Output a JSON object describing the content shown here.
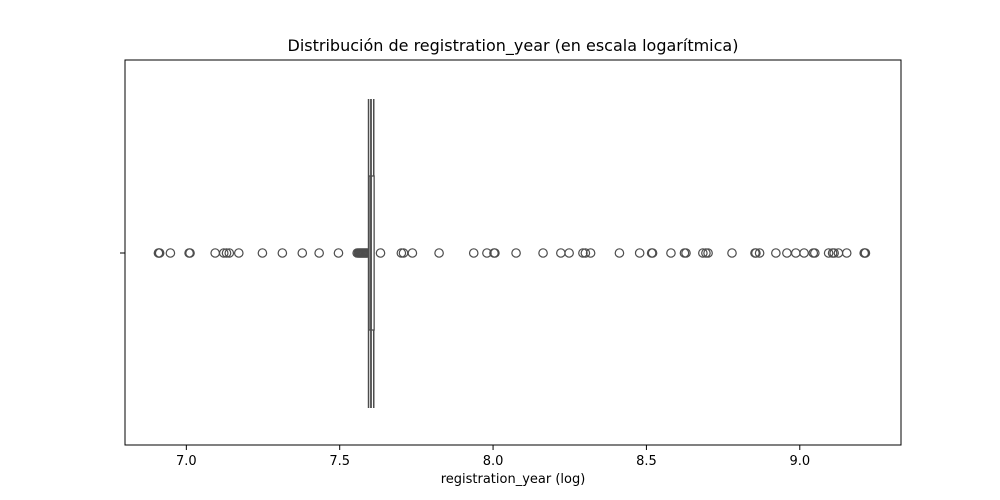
{
  "chart_data": {
    "type": "box",
    "orientation": "horizontal",
    "title": "Distribución de registration_year (en escala logarítmica)",
    "xlabel": "registration_year (log)",
    "ylabel": "",
    "xlim": [
      6.8,
      9.33
    ],
    "x_ticks": [
      7.0,
      7.5,
      8.0,
      8.5,
      9.0
    ],
    "x_tick_labels": [
      "7.0",
      "7.5",
      "8.0",
      "8.5",
      "9.0"
    ],
    "y_tick_labels": [
      ""
    ],
    "grid": false,
    "box": {
      "q1": 7.599,
      "median": 7.602,
      "q3": 7.609,
      "whisker_low": 7.594,
      "whisker_high": 7.611,
      "color": "#4d4d4d"
    },
    "outliers": [
      6.909,
      6.911,
      6.913,
      6.948,
      7.009,
      7.012,
      7.094,
      7.122,
      7.131,
      7.14,
      7.171,
      7.248,
      7.313,
      7.378,
      7.433,
      7.496,
      7.557,
      7.561,
      7.564,
      7.567,
      7.57,
      7.573,
      7.576,
      7.579,
      7.582,
      7.585,
      7.588,
      7.591,
      7.633,
      7.701,
      7.708,
      7.737,
      7.824,
      7.937,
      7.98,
      8.003,
      8.006,
      8.075,
      8.163,
      8.221,
      8.248,
      8.293,
      8.301,
      8.318,
      8.412,
      8.478,
      8.517,
      8.52,
      8.58,
      8.624,
      8.629,
      8.684,
      8.694,
      8.701,
      8.779,
      8.854,
      8.857,
      8.869,
      8.922,
      8.958,
      8.987,
      9.014,
      9.044,
      9.049,
      9.094,
      9.107,
      9.112,
      9.126,
      9.153,
      9.21,
      9.212,
      9.214
    ],
    "outlier_style": "open-circle",
    "axis_color": "#000000"
  }
}
